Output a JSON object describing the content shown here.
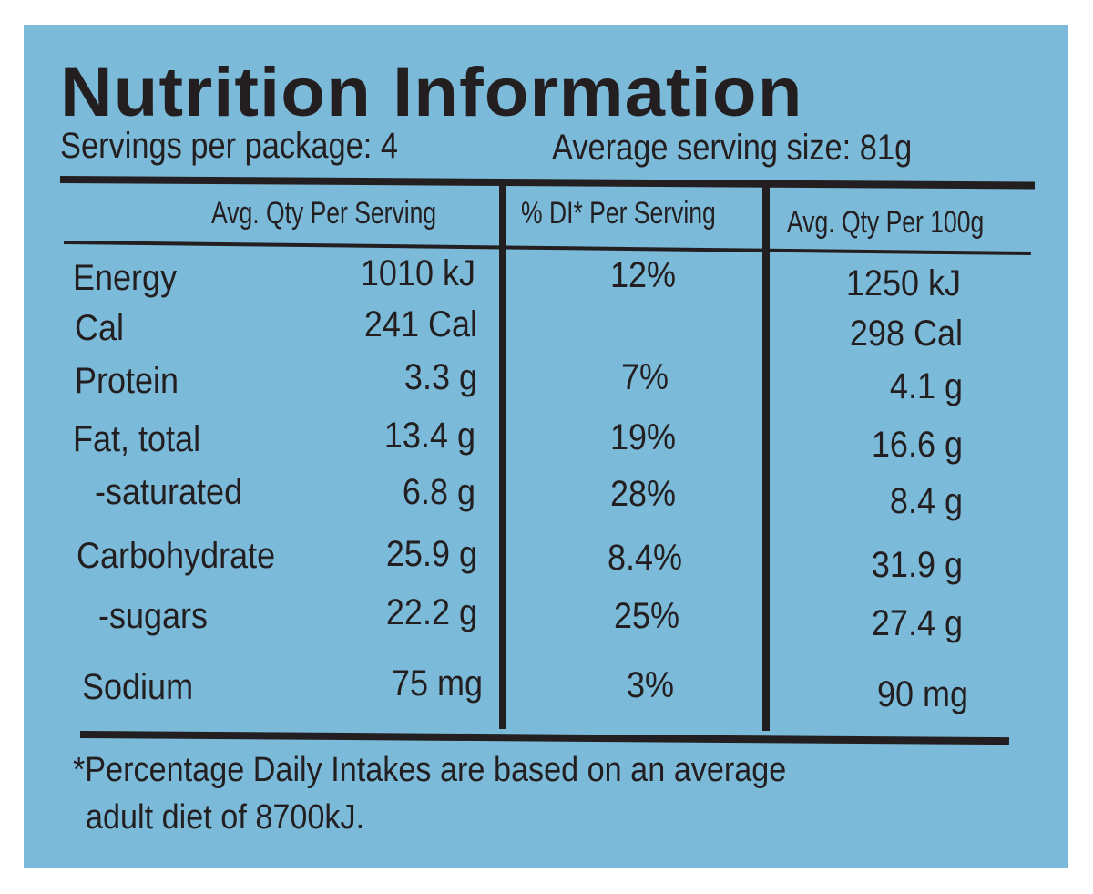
{
  "title": "Nutrition Information",
  "servings_per_package": "Servings per package: 4",
  "average_serving_size": "Average serving size: 81g",
  "columns": {
    "per_serving": "Avg. Qty Per Serving",
    "di_per_serving": "% DI* Per Serving",
    "per_100g": "Avg. Qty Per 100g"
  },
  "rows": [
    {
      "label": "Energy",
      "per_serving": "1010 kJ",
      "di": "12%",
      "per_100g": "1250 kJ"
    },
    {
      "label": "Cal",
      "per_serving": "241 Cal",
      "di": "",
      "per_100g": "298 Cal"
    },
    {
      "label": "Protein",
      "per_serving": "3.3 g",
      "di": "7%",
      "per_100g": "4.1 g"
    },
    {
      "label": "Fat, total",
      "per_serving": "13.4 g",
      "di": "19%",
      "per_100g": "16.6 g"
    },
    {
      "label": "-saturated",
      "per_serving": "6.8 g",
      "di": "28%",
      "per_100g": "8.4 g"
    },
    {
      "label": "Carbohydrate",
      "per_serving": "25.9 g",
      "di": "8.4%",
      "per_100g": "31.9 g"
    },
    {
      "label": "-sugars",
      "per_serving": "22.2 g",
      "di": "25%",
      "per_100g": "27.4 g"
    },
    {
      "label": "Sodium",
      "per_serving": "75 mg",
      "di": "3%",
      "per_100g": "90 mg"
    }
  ],
  "footnote": {
    "line1": "*Percentage Daily Intakes are based on an average",
    "line2": "adult diet of 8700kJ."
  },
  "colors": {
    "panel": "#7bbad9",
    "ink": "#231f20"
  }
}
